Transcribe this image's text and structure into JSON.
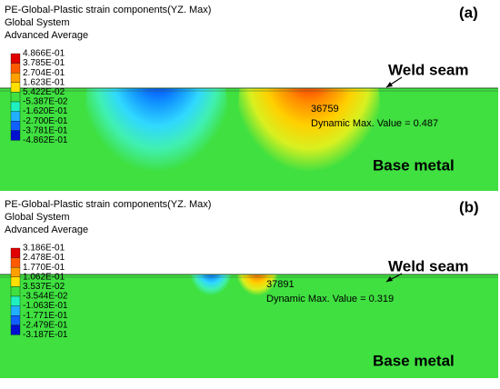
{
  "panels": [
    {
      "label": "(a)",
      "header": [
        "PE-Global-Plastic strain components(YZ. Max)",
        "Global System",
        "Advanced Average"
      ],
      "legend": [
        "4.866E-01",
        "3.785E-01",
        "2.704E-01",
        "1.623E-01",
        "5.422E-02",
        "-5.387E-02",
        "-1.620E-01",
        "-2.700E-01",
        "-3.781E-01",
        "-4.862E-01"
      ],
      "node": "36759",
      "dynamic_max": "Dynamic Max. Value = 0.487",
      "weld_seam": "Weld seam",
      "base_metal": "Base metal"
    },
    {
      "label": "(b)",
      "header": [
        "PE-Global-Plastic strain components(YZ. Max)",
        "Global System",
        "Advanced Average"
      ],
      "legend": [
        "3.186E-01",
        "2.478E-01",
        "1.770E-01",
        "1.062E-01",
        "3.537E-02",
        "-3.544E-02",
        "-1.063E-01",
        "-1.771E-01",
        "-2.479E-01",
        "-3.187E-01"
      ],
      "node": "37891",
      "dynamic_max": "Dynamic Max. Value = 0.319",
      "weld_seam": "Weld seam",
      "base_metal": "Base metal"
    }
  ]
}
